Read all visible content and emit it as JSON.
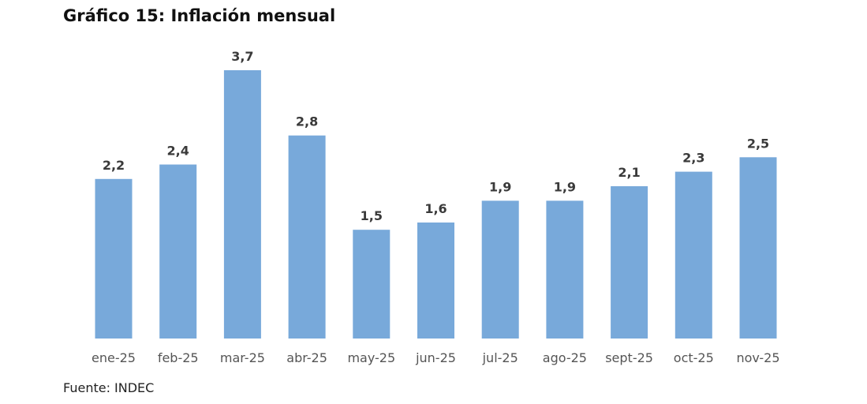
{
  "header": {
    "title": "Gráfico 15: Inflación mensual"
  },
  "footer": {
    "source": "Fuente: INDEC"
  },
  "chart_data": {
    "type": "bar",
    "title": "Gráfico 15: Inflación mensual",
    "xlabel": "",
    "ylabel": "",
    "ylim": [
      0,
      3.7
    ],
    "grid": false,
    "bar_color": "#78A9DA",
    "categories": [
      "ene-25",
      "feb-25",
      "mar-25",
      "abr-25",
      "may-25",
      "jun-25",
      "jul-25",
      "ago-25",
      "sept-25",
      "oct-25",
      "nov-25"
    ],
    "values": [
      2.2,
      2.4,
      3.7,
      2.8,
      1.5,
      1.6,
      1.9,
      1.9,
      2.1,
      2.3,
      2.5
    ],
    "value_labels": [
      "2,2",
      "2,4",
      "3,7",
      "2,8",
      "1,5",
      "1,6",
      "1,9",
      "1,9",
      "2,1",
      "2,3",
      "2,5"
    ]
  }
}
